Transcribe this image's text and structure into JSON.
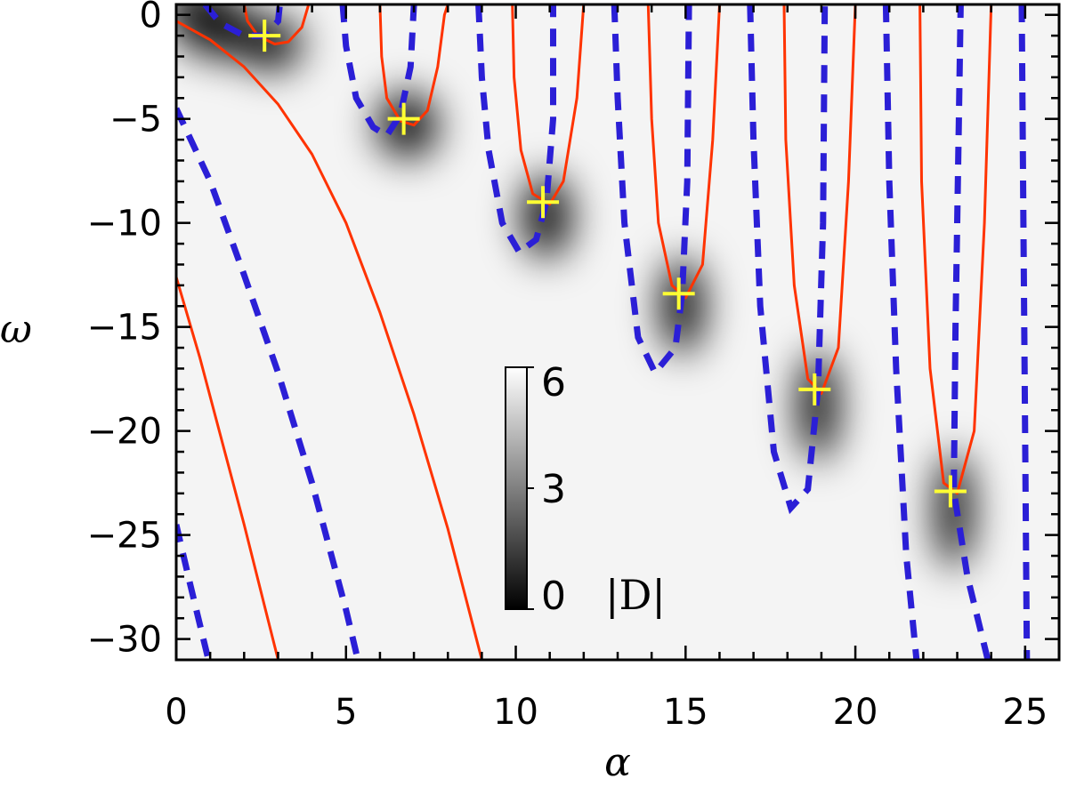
{
  "chart_data": {
    "type": "heatmap",
    "xlabel": "α",
    "ylabel": "ω",
    "xlim": [
      0,
      26
    ],
    "ylim": [
      -31,
      0.5
    ],
    "x_ticks": [
      {
        "value": 0,
        "label": "0"
      },
      {
        "value": 5,
        "label": "5"
      },
      {
        "value": 10,
        "label": "10"
      },
      {
        "value": 15,
        "label": "15"
      },
      {
        "value": 20,
        "label": "20"
      },
      {
        "value": 25,
        "label": "25"
      }
    ],
    "y_ticks": [
      {
        "value": 0,
        "label": "0"
      },
      {
        "value": -5,
        "label": "−5"
      },
      {
        "value": -10,
        "label": "−10"
      },
      {
        "value": -15,
        "label": "−15"
      },
      {
        "value": -20,
        "label": "−20"
      },
      {
        "value": -25,
        "label": "−25"
      },
      {
        "value": -30,
        "label": "−30"
      }
    ],
    "colorbar": {
      "title": "|D|",
      "range": [
        0,
        6
      ],
      "ticks": [
        {
          "value": 6,
          "label": "6"
        },
        {
          "value": 3,
          "label": "3"
        },
        {
          "value": 0,
          "label": "0"
        }
      ]
    },
    "colors": {
      "solid_curve": "#ff3300",
      "dashed_curve": "#2b1fd6",
      "roots": "#ffff33",
      "background": "#f4f4f4"
    },
    "roots": [
      {
        "x": 2.6,
        "y": -1.0
      },
      {
        "x": 6.7,
        "y": -5.0
      },
      {
        "x": 10.8,
        "y": -9.0
      },
      {
        "x": 14.8,
        "y": -13.4
      },
      {
        "x": 18.8,
        "y": -18.0
      },
      {
        "x": 22.8,
        "y": -22.9
      }
    ],
    "dark_regions": [
      {
        "x": 1.0,
        "y": -0.3,
        "sx": 1.4,
        "sy": 1.6,
        "rot": 30
      },
      {
        "x": 2.8,
        "y": -1.4,
        "sx": 0.9,
        "sy": 1.3,
        "rot": 0
      },
      {
        "x": 6.8,
        "y": -5.3,
        "sx": 0.9,
        "sy": 1.6,
        "rot": -10
      },
      {
        "x": 10.9,
        "y": -9.7,
        "sx": 0.75,
        "sy": 2.0,
        "rot": 0
      },
      {
        "x": 14.9,
        "y": -14.0,
        "sx": 0.65,
        "sy": 2.3,
        "rot": 0
      },
      {
        "x": 18.9,
        "y": -18.8,
        "sx": 0.6,
        "sy": 2.6,
        "rot": 0
      },
      {
        "x": 22.9,
        "y": -23.8,
        "sx": 0.55,
        "sy": 2.8,
        "rot": 0
      }
    ],
    "solid_curves": [
      {
        "name": "",
        "points": [
          [
            2.0,
            0.5
          ],
          [
            2.1,
            -0.3
          ],
          [
            2.4,
            -1.0
          ],
          [
            2.9,
            -1.4
          ],
          [
            3.3,
            -1.3
          ],
          [
            3.7,
            -0.6
          ],
          [
            3.9,
            0.5
          ]
        ]
      },
      {
        "name": "",
        "points": [
          [
            6.0,
            0.5
          ],
          [
            6.05,
            -2.0
          ],
          [
            6.2,
            -4.0
          ],
          [
            6.6,
            -5.1
          ],
          [
            7.0,
            -5.3
          ],
          [
            7.4,
            -4.6
          ],
          [
            7.7,
            -2.5
          ],
          [
            7.9,
            0.0
          ],
          [
            8.0,
            0.5
          ]
        ]
      },
      {
        "name": "",
        "points": [
          [
            9.9,
            0.5
          ],
          [
            9.95,
            -3.0
          ],
          [
            10.15,
            -6.5
          ],
          [
            10.5,
            -8.6
          ],
          [
            11.0,
            -9.1
          ],
          [
            11.4,
            -8.0
          ],
          [
            11.8,
            -4.0
          ],
          [
            12.0,
            0.5
          ]
        ]
      },
      {
        "name": "",
        "points": [
          [
            13.9,
            0.5
          ],
          [
            14.0,
            -5.0
          ],
          [
            14.2,
            -10.0
          ],
          [
            14.6,
            -13.0
          ],
          [
            15.0,
            -13.6
          ],
          [
            15.5,
            -12.0
          ],
          [
            15.8,
            -6.0
          ],
          [
            16.0,
            0.5
          ]
        ]
      },
      {
        "name": "",
        "points": [
          [
            17.9,
            0.5
          ],
          [
            17.95,
            -6.0
          ],
          [
            18.2,
            -13.0
          ],
          [
            18.6,
            -17.5
          ],
          [
            19.0,
            -18.2
          ],
          [
            19.5,
            -16.0
          ],
          [
            19.8,
            -8.0
          ],
          [
            20.0,
            0.5
          ]
        ]
      },
      {
        "name": "",
        "points": [
          [
            21.9,
            0.5
          ],
          [
            21.95,
            -8.0
          ],
          [
            22.2,
            -17.0
          ],
          [
            22.6,
            -22.5
          ],
          [
            23.0,
            -23.0
          ],
          [
            23.5,
            -20.0
          ],
          [
            23.8,
            -10.0
          ],
          [
            24.0,
            0.5
          ]
        ]
      },
      {
        "name": "",
        "points": [
          [
            0.0,
            -0.3
          ],
          [
            1.0,
            -1.2
          ],
          [
            2.0,
            -2.5
          ],
          [
            3.0,
            -4.3
          ],
          [
            4.0,
            -6.7
          ],
          [
            5.0,
            -10.0
          ],
          [
            6.0,
            -14.3
          ],
          [
            7.0,
            -19.2
          ],
          [
            8.0,
            -24.7
          ],
          [
            9.0,
            -31.0
          ]
        ]
      },
      {
        "name": "",
        "points": [
          [
            0.0,
            -12.6
          ],
          [
            0.7,
            -16.5
          ],
          [
            1.3,
            -20.2
          ],
          [
            2.0,
            -24.5
          ],
          [
            2.6,
            -28.4
          ],
          [
            3.0,
            -31.0
          ]
        ]
      }
    ],
    "dashed_curves": [
      {
        "name": "",
        "points": [
          [
            0.85,
            0.5
          ],
          [
            1.3,
            -0.4
          ],
          [
            2.0,
            -1.0
          ],
          [
            2.6,
            -1.0
          ],
          [
            3.0,
            -0.3
          ],
          [
            3.05,
            0.5
          ]
        ]
      },
      {
        "name": "",
        "points": [
          [
            4.9,
            0.5
          ],
          [
            5.0,
            -1.5
          ],
          [
            5.3,
            -4.0
          ],
          [
            5.8,
            -5.4
          ],
          [
            6.2,
            -5.8
          ],
          [
            6.6,
            -4.8
          ],
          [
            6.9,
            -2.5
          ],
          [
            7.0,
            0.5
          ]
        ]
      },
      {
        "name": "",
        "points": [
          [
            8.9,
            0.5
          ],
          [
            9.0,
            -3.0
          ],
          [
            9.2,
            -6.5
          ],
          [
            9.6,
            -10.0
          ],
          [
            10.1,
            -11.4
          ],
          [
            10.6,
            -10.8
          ],
          [
            10.9,
            -9.0
          ],
          [
            11.1,
            -5.0
          ],
          [
            11.1,
            0.5
          ]
        ]
      },
      {
        "name": "",
        "points": [
          [
            12.9,
            0.5
          ],
          [
            13.0,
            -4.0
          ],
          [
            13.2,
            -10.0
          ],
          [
            13.6,
            -15.5
          ],
          [
            14.1,
            -17.2
          ],
          [
            14.7,
            -16.0
          ],
          [
            14.9,
            -13.4
          ],
          [
            15.05,
            -8.0
          ],
          [
            15.1,
            0.5
          ]
        ]
      },
      {
        "name": "",
        "points": [
          [
            16.9,
            0.5
          ],
          [
            17.0,
            -6.0
          ],
          [
            17.2,
            -14.0
          ],
          [
            17.6,
            -21.0
          ],
          [
            18.1,
            -23.7
          ],
          [
            18.6,
            -22.8
          ],
          [
            18.9,
            -18.0
          ],
          [
            19.05,
            -10.0
          ],
          [
            19.1,
            0.5
          ]
        ]
      },
      {
        "name": "",
        "points": [
          [
            20.9,
            0.5
          ],
          [
            21.0,
            -8.0
          ],
          [
            21.2,
            -17.0
          ],
          [
            21.5,
            -26.0
          ],
          [
            21.8,
            -31.0
          ]
        ]
      },
      {
        "name": "",
        "points": [
          [
            23.9,
            -31.0
          ],
          [
            23.3,
            -27.0
          ],
          [
            22.9,
            -22.9
          ],
          [
            22.95,
            -15.0
          ],
          [
            23.05,
            -5.0
          ],
          [
            23.1,
            0.5
          ]
        ]
      },
      {
        "name": "",
        "points": [
          [
            24.9,
            0.5
          ],
          [
            24.95,
            -10.0
          ],
          [
            25.0,
            -20.0
          ],
          [
            25.05,
            -31.0
          ]
        ]
      },
      {
        "name": "",
        "points": [
          [
            0.0,
            -4.5
          ],
          [
            1.0,
            -8.0
          ],
          [
            2.0,
            -12.5
          ],
          [
            3.0,
            -17.2
          ],
          [
            4.0,
            -22.5
          ],
          [
            5.0,
            -28.6
          ],
          [
            5.35,
            -31.0
          ]
        ]
      },
      {
        "name": "",
        "points": [
          [
            0.0,
            -24.5
          ],
          [
            0.4,
            -27.3
          ],
          [
            0.8,
            -30.0
          ],
          [
            0.95,
            -31.0
          ]
        ]
      }
    ]
  }
}
